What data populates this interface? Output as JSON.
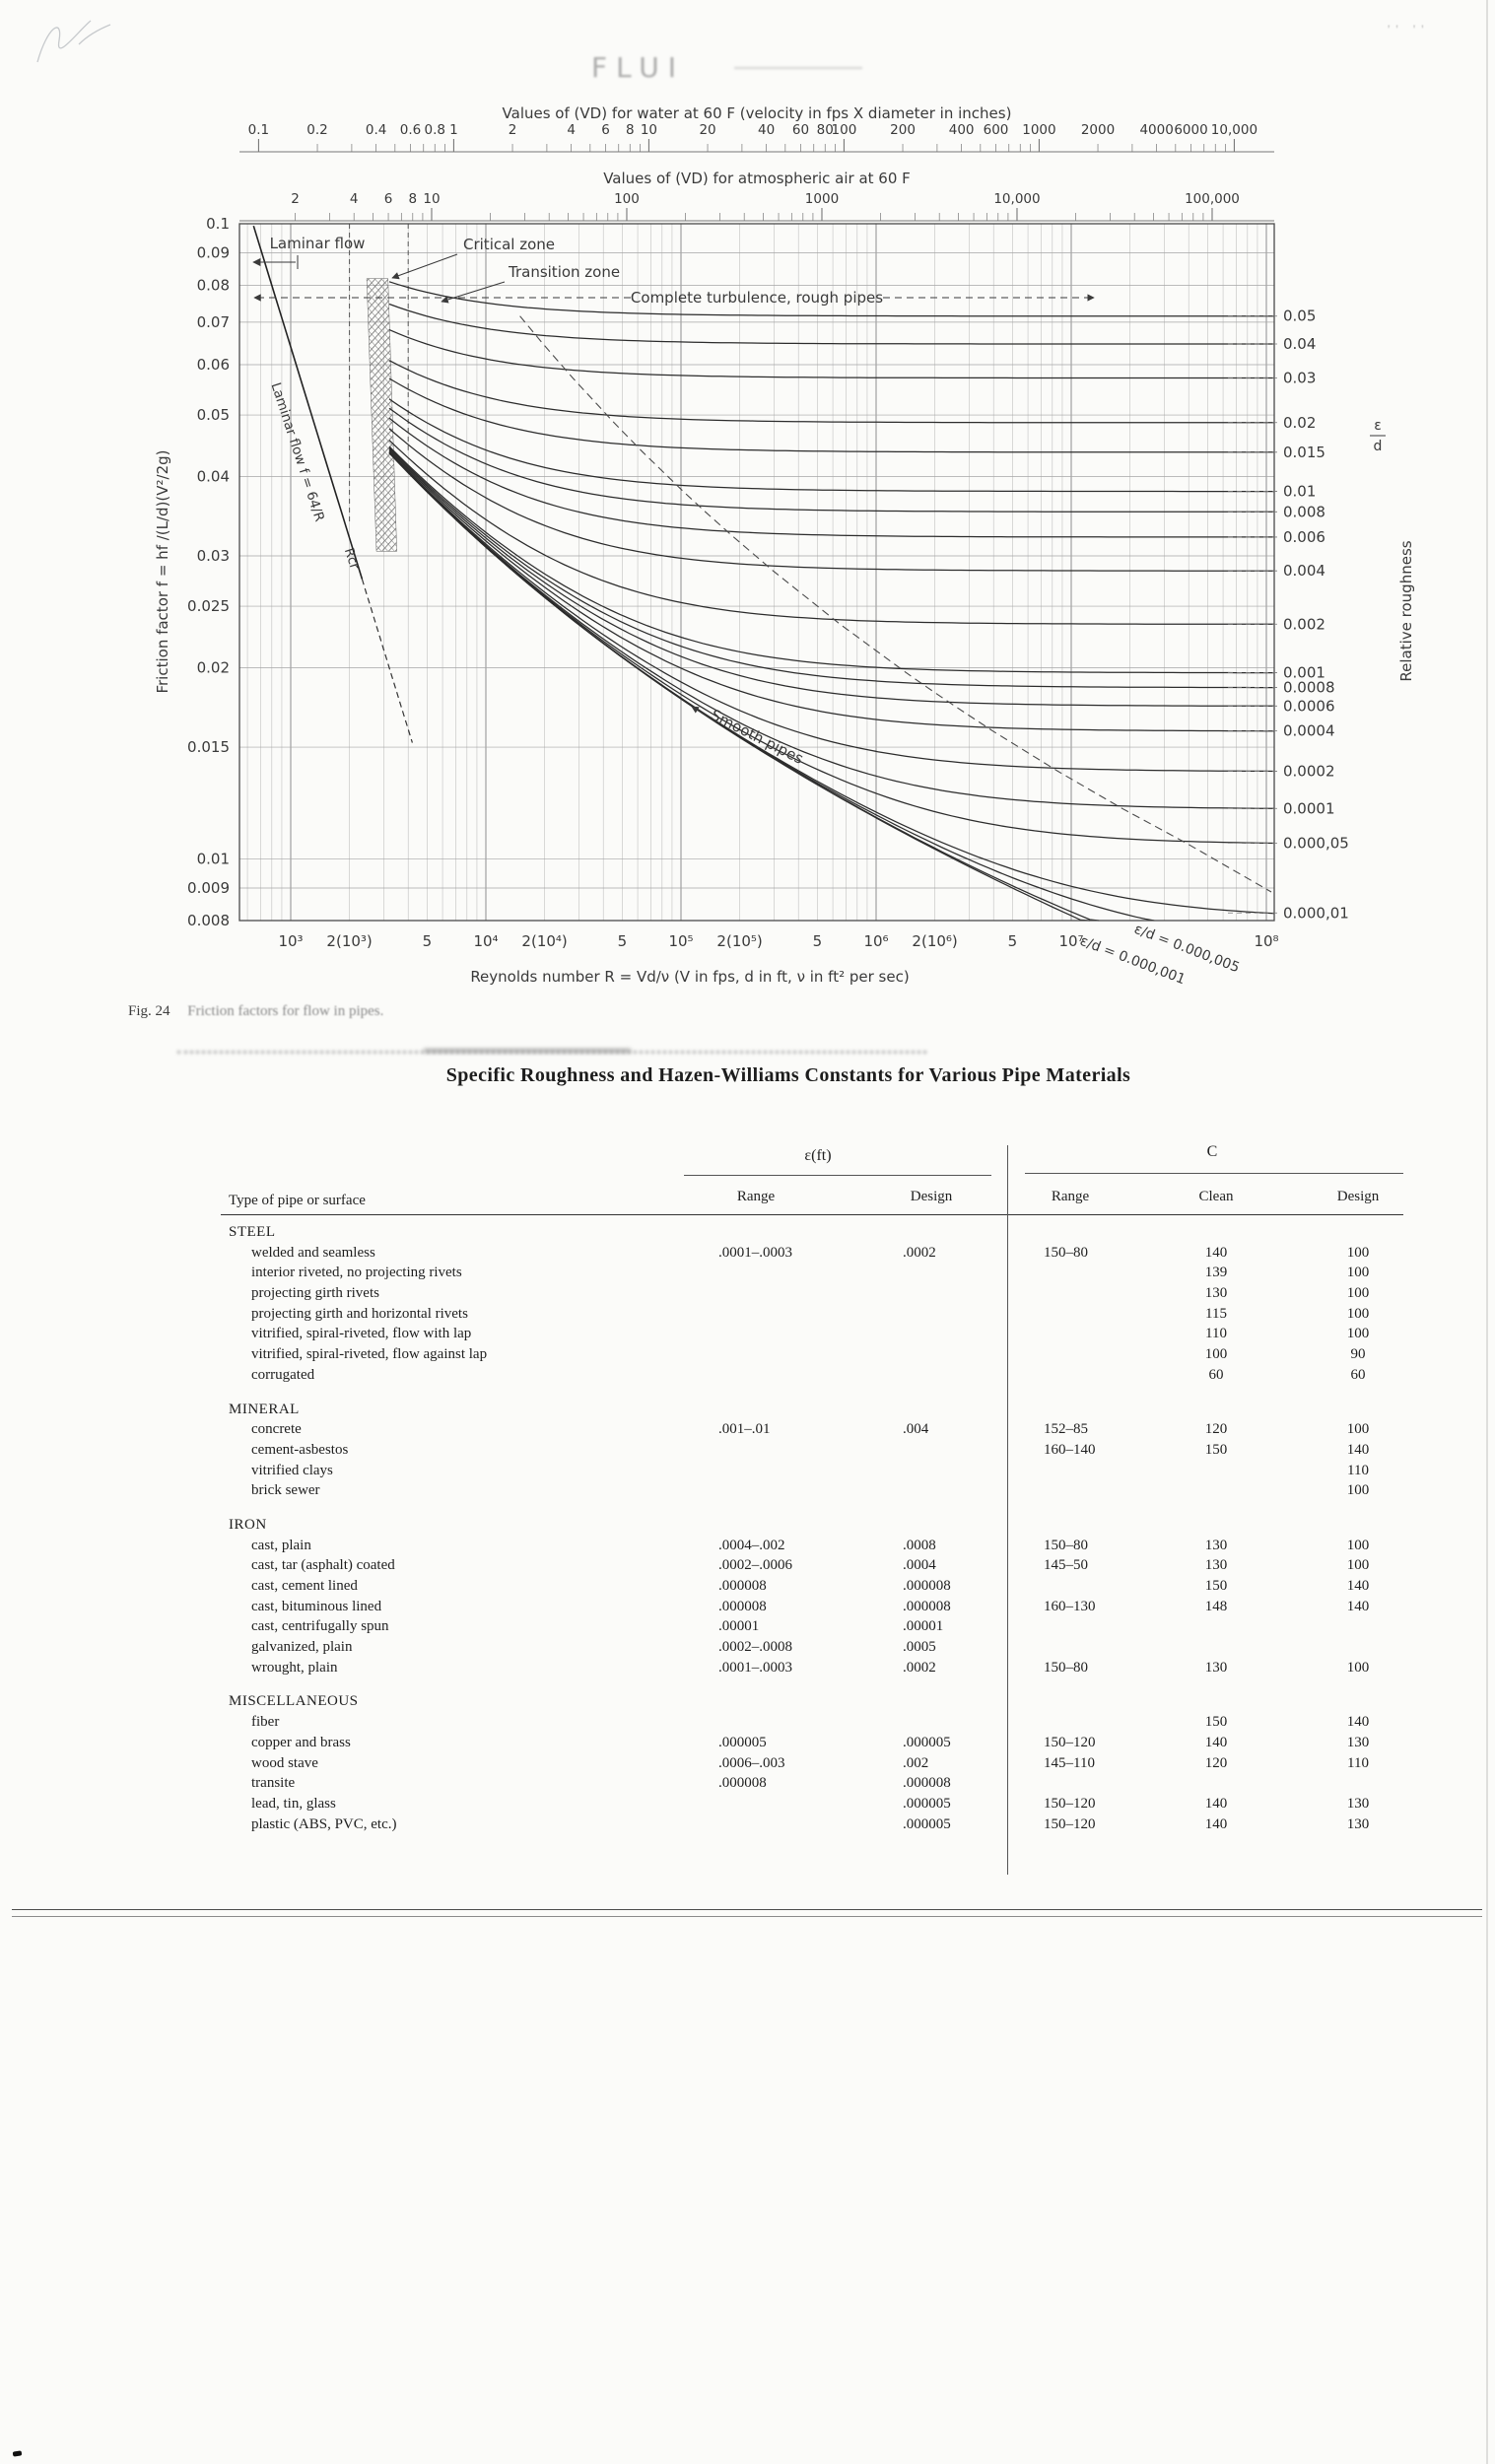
{
  "page": {
    "ghost_header": "FLUI",
    "corner_marks": "'' ''",
    "fig_caption_label": "Fig. 24",
    "fig_caption_text": "Friction factors for flow in pipes."
  },
  "chart_data": {
    "type": "line",
    "top_scales": {
      "water": {
        "title": "Values of (VD) for water at 60 F (velocity in fps X diameter in inches)",
        "tick_values": [
          0.1,
          0.2,
          0.4,
          0.6,
          0.8,
          1,
          2,
          4,
          6,
          8,
          10,
          20,
          40,
          60,
          80,
          100,
          200,
          400,
          600,
          1000,
          2000,
          4000,
          6000,
          10000
        ],
        "tick_labels": [
          "0.1",
          "0.2",
          "0.4",
          "0.6",
          "0.8",
          "1",
          "2",
          "4",
          "6",
          "8",
          "10",
          "20",
          "40",
          "60",
          "80",
          "100",
          "200",
          "400",
          "600",
          "1000",
          "2000",
          "4000",
          "6000",
          "10,000"
        ]
      },
      "air": {
        "title": "Values of (VD) for atmospheric air at 60 F",
        "tick_values": [
          2,
          4,
          6,
          8,
          10,
          100,
          1000,
          10000,
          100000
        ],
        "tick_labels": [
          "2",
          "4",
          "6",
          "8",
          "10",
          "100",
          "1000",
          "10,000",
          "100,000"
        ]
      }
    },
    "x_axis": {
      "label": "Reynolds number R = Vd/ν  (V in fps, d in ft, ν in ft² per sec)",
      "scale": "log",
      "range": [
        550,
        110000000
      ],
      "tick_values": [
        1000,
        2000,
        5000,
        10000,
        20000,
        50000,
        100000,
        200000,
        500000,
        1000000,
        2000000,
        5000000,
        10000000,
        100000000
      ],
      "tick_labels": [
        "10³",
        "2(10³)",
        "5",
        "10⁴",
        "2(10⁴)",
        "5",
        "10⁵",
        "2(10⁵)",
        "5",
        "10⁶",
        "2(10⁶)",
        "5",
        "10⁷",
        "10⁸"
      ]
    },
    "y_axis_left": {
      "label": "Friction factor f = hf /(L/d)(V²/2g)",
      "scale": "log",
      "range": [
        0.008,
        0.1
      ],
      "tick_values": [
        0.1,
        0.09,
        0.08,
        0.07,
        0.06,
        0.05,
        0.04,
        0.03,
        0.025,
        0.02,
        0.015,
        0.01,
        0.009,
        0.008
      ],
      "tick_labels": [
        "0.1",
        "0.09",
        "0.08",
        "0.07",
        "0.06",
        "0.05",
        "0.04",
        "0.03",
        "0.025",
        "0.02",
        "0.015",
        "0.01",
        "0.009",
        "0.008"
      ]
    },
    "y_axis_right": {
      "label": "Relative roughness",
      "fraction_top": "ε",
      "fraction_bottom": "d",
      "tick_values": [
        0.05,
        0.04,
        0.03,
        0.02,
        0.015,
        0.01,
        0.008,
        0.006,
        0.004,
        0.002,
        0.001,
        0.0008,
        0.0006,
        0.0004,
        0.0002,
        0.0001,
        5e-05,
        1e-05
      ],
      "tick_labels": [
        "0.05",
        "0.04",
        "0.03",
        "0.02",
        "0.015",
        "0.01",
        "0.008",
        "0.006",
        "0.004",
        "0.002",
        "0.001",
        "0.0008",
        "0.0006",
        "0.0004",
        "0.0002",
        "0.0001",
        "0.000,05",
        "0.000,01"
      ]
    },
    "series": {
      "relative_roughness_curves": [
        0.05,
        0.04,
        0.03,
        0.02,
        0.015,
        0.01,
        0.008,
        0.006,
        0.004,
        0.002,
        0.001,
        0.0008,
        0.0006,
        0.0004,
        0.0002,
        0.0001,
        5e-05,
        1e-05,
        5e-06,
        1e-06
      ],
      "smooth_pipe": true,
      "laminar": "f = 64/R"
    },
    "annotations": {
      "laminar_flow": "Laminar flow",
      "critical_zone": "Critical zone",
      "transition_zone": "Transition zone",
      "complete_turbulence": "Complete turbulence, rough pipes",
      "laminar_line": "Laminar flow f = 64/R",
      "r_cr": "Rcr",
      "smooth_pipes": "Smooth pipes",
      "eps_labels": [
        "ε/d = 0.000,001",
        "ε/d = 0.000,005"
      ]
    }
  },
  "table": {
    "title": "Specific Roughness and Hazen-Williams Constants for Various Pipe Materials",
    "col_group_eps": "ε(ft)",
    "col_group_c": "C",
    "row_header": "Type of pipe or surface",
    "subheaders": [
      "Range",
      "Design",
      "Range",
      "Clean",
      "Design"
    ],
    "rows": [
      {
        "label": "STEEL",
        "group": true,
        "v": [
          "",
          "",
          "",
          "",
          ""
        ]
      },
      {
        "label": "welded and seamless",
        "v": [
          ".0001–.0003",
          ".0002",
          "150–80",
          "140",
          "100"
        ]
      },
      {
        "label": "interior riveted, no projecting rivets",
        "v": [
          "",
          "",
          "",
          "139",
          "100"
        ]
      },
      {
        "label": "projecting girth rivets",
        "v": [
          "",
          "",
          "",
          "130",
          "100"
        ]
      },
      {
        "label": "projecting girth and horizontal rivets",
        "v": [
          "",
          "",
          "",
          "115",
          "100"
        ]
      },
      {
        "label": "vitrified, spiral-riveted, flow with lap",
        "v": [
          "",
          "",
          "",
          "110",
          "100"
        ]
      },
      {
        "label": "vitrified, spiral-riveted, flow against lap",
        "v": [
          "",
          "",
          "",
          "100",
          "90"
        ]
      },
      {
        "label": "corrugated",
        "v": [
          "",
          "",
          "",
          "60",
          "60"
        ]
      },
      {
        "label": "MINERAL",
        "group": true,
        "v": [
          "",
          "",
          "",
          "",
          ""
        ]
      },
      {
        "label": "concrete",
        "v": [
          ".001–.01",
          ".004",
          "152–85",
          "120",
          "100"
        ]
      },
      {
        "label": "cement-asbestos",
        "v": [
          "",
          "",
          "160–140",
          "150",
          "140"
        ]
      },
      {
        "label": "vitrified clays",
        "v": [
          "",
          "",
          "",
          "",
          "110"
        ]
      },
      {
        "label": "brick sewer",
        "v": [
          "",
          "",
          "",
          "",
          "100"
        ]
      },
      {
        "label": "IRON",
        "group": true,
        "v": [
          "",
          "",
          "",
          "",
          ""
        ]
      },
      {
        "label": "cast, plain",
        "v": [
          ".0004–.002",
          ".0008",
          "150–80",
          "130",
          "100"
        ]
      },
      {
        "label": "cast, tar (asphalt) coated",
        "v": [
          ".0002–.0006",
          ".0004",
          "145–50",
          "130",
          "100"
        ]
      },
      {
        "label": "cast, cement lined",
        "v": [
          ".000008",
          ".000008",
          "",
          "150",
          "140"
        ]
      },
      {
        "label": "cast, bituminous lined",
        "v": [
          ".000008",
          ".000008",
          "160–130",
          "148",
          "140"
        ]
      },
      {
        "label": "cast, centrifugally spun",
        "v": [
          ".00001",
          ".00001",
          "",
          "",
          ""
        ]
      },
      {
        "label": "galvanized, plain",
        "v": [
          ".0002–.0008",
          ".0005",
          "",
          "",
          ""
        ]
      },
      {
        "label": "wrought, plain",
        "v": [
          ".0001–.0003",
          ".0002",
          "150–80",
          "130",
          "100"
        ]
      },
      {
        "label": "MISCELLANEOUS",
        "group": true,
        "v": [
          "",
          "",
          "",
          "",
          ""
        ]
      },
      {
        "label": "fiber",
        "v": [
          "",
          "",
          "",
          "150",
          "140"
        ]
      },
      {
        "label": "copper and brass",
        "v": [
          ".000005",
          ".000005",
          "150–120",
          "140",
          "130"
        ]
      },
      {
        "label": "wood stave",
        "v": [
          ".0006–.003",
          ".002",
          "145–110",
          "120",
          "110"
        ]
      },
      {
        "label": "transite",
        "v": [
          ".000008",
          ".000008",
          "",
          "",
          ""
        ]
      },
      {
        "label": "lead, tin, glass",
        "v": [
          "",
          ".000005",
          "150–120",
          "140",
          "130"
        ]
      },
      {
        "label": "plastic (ABS, PVC, etc.)",
        "v": [
          "",
          ".000005",
          "150–120",
          "140",
          "130"
        ]
      }
    ]
  }
}
